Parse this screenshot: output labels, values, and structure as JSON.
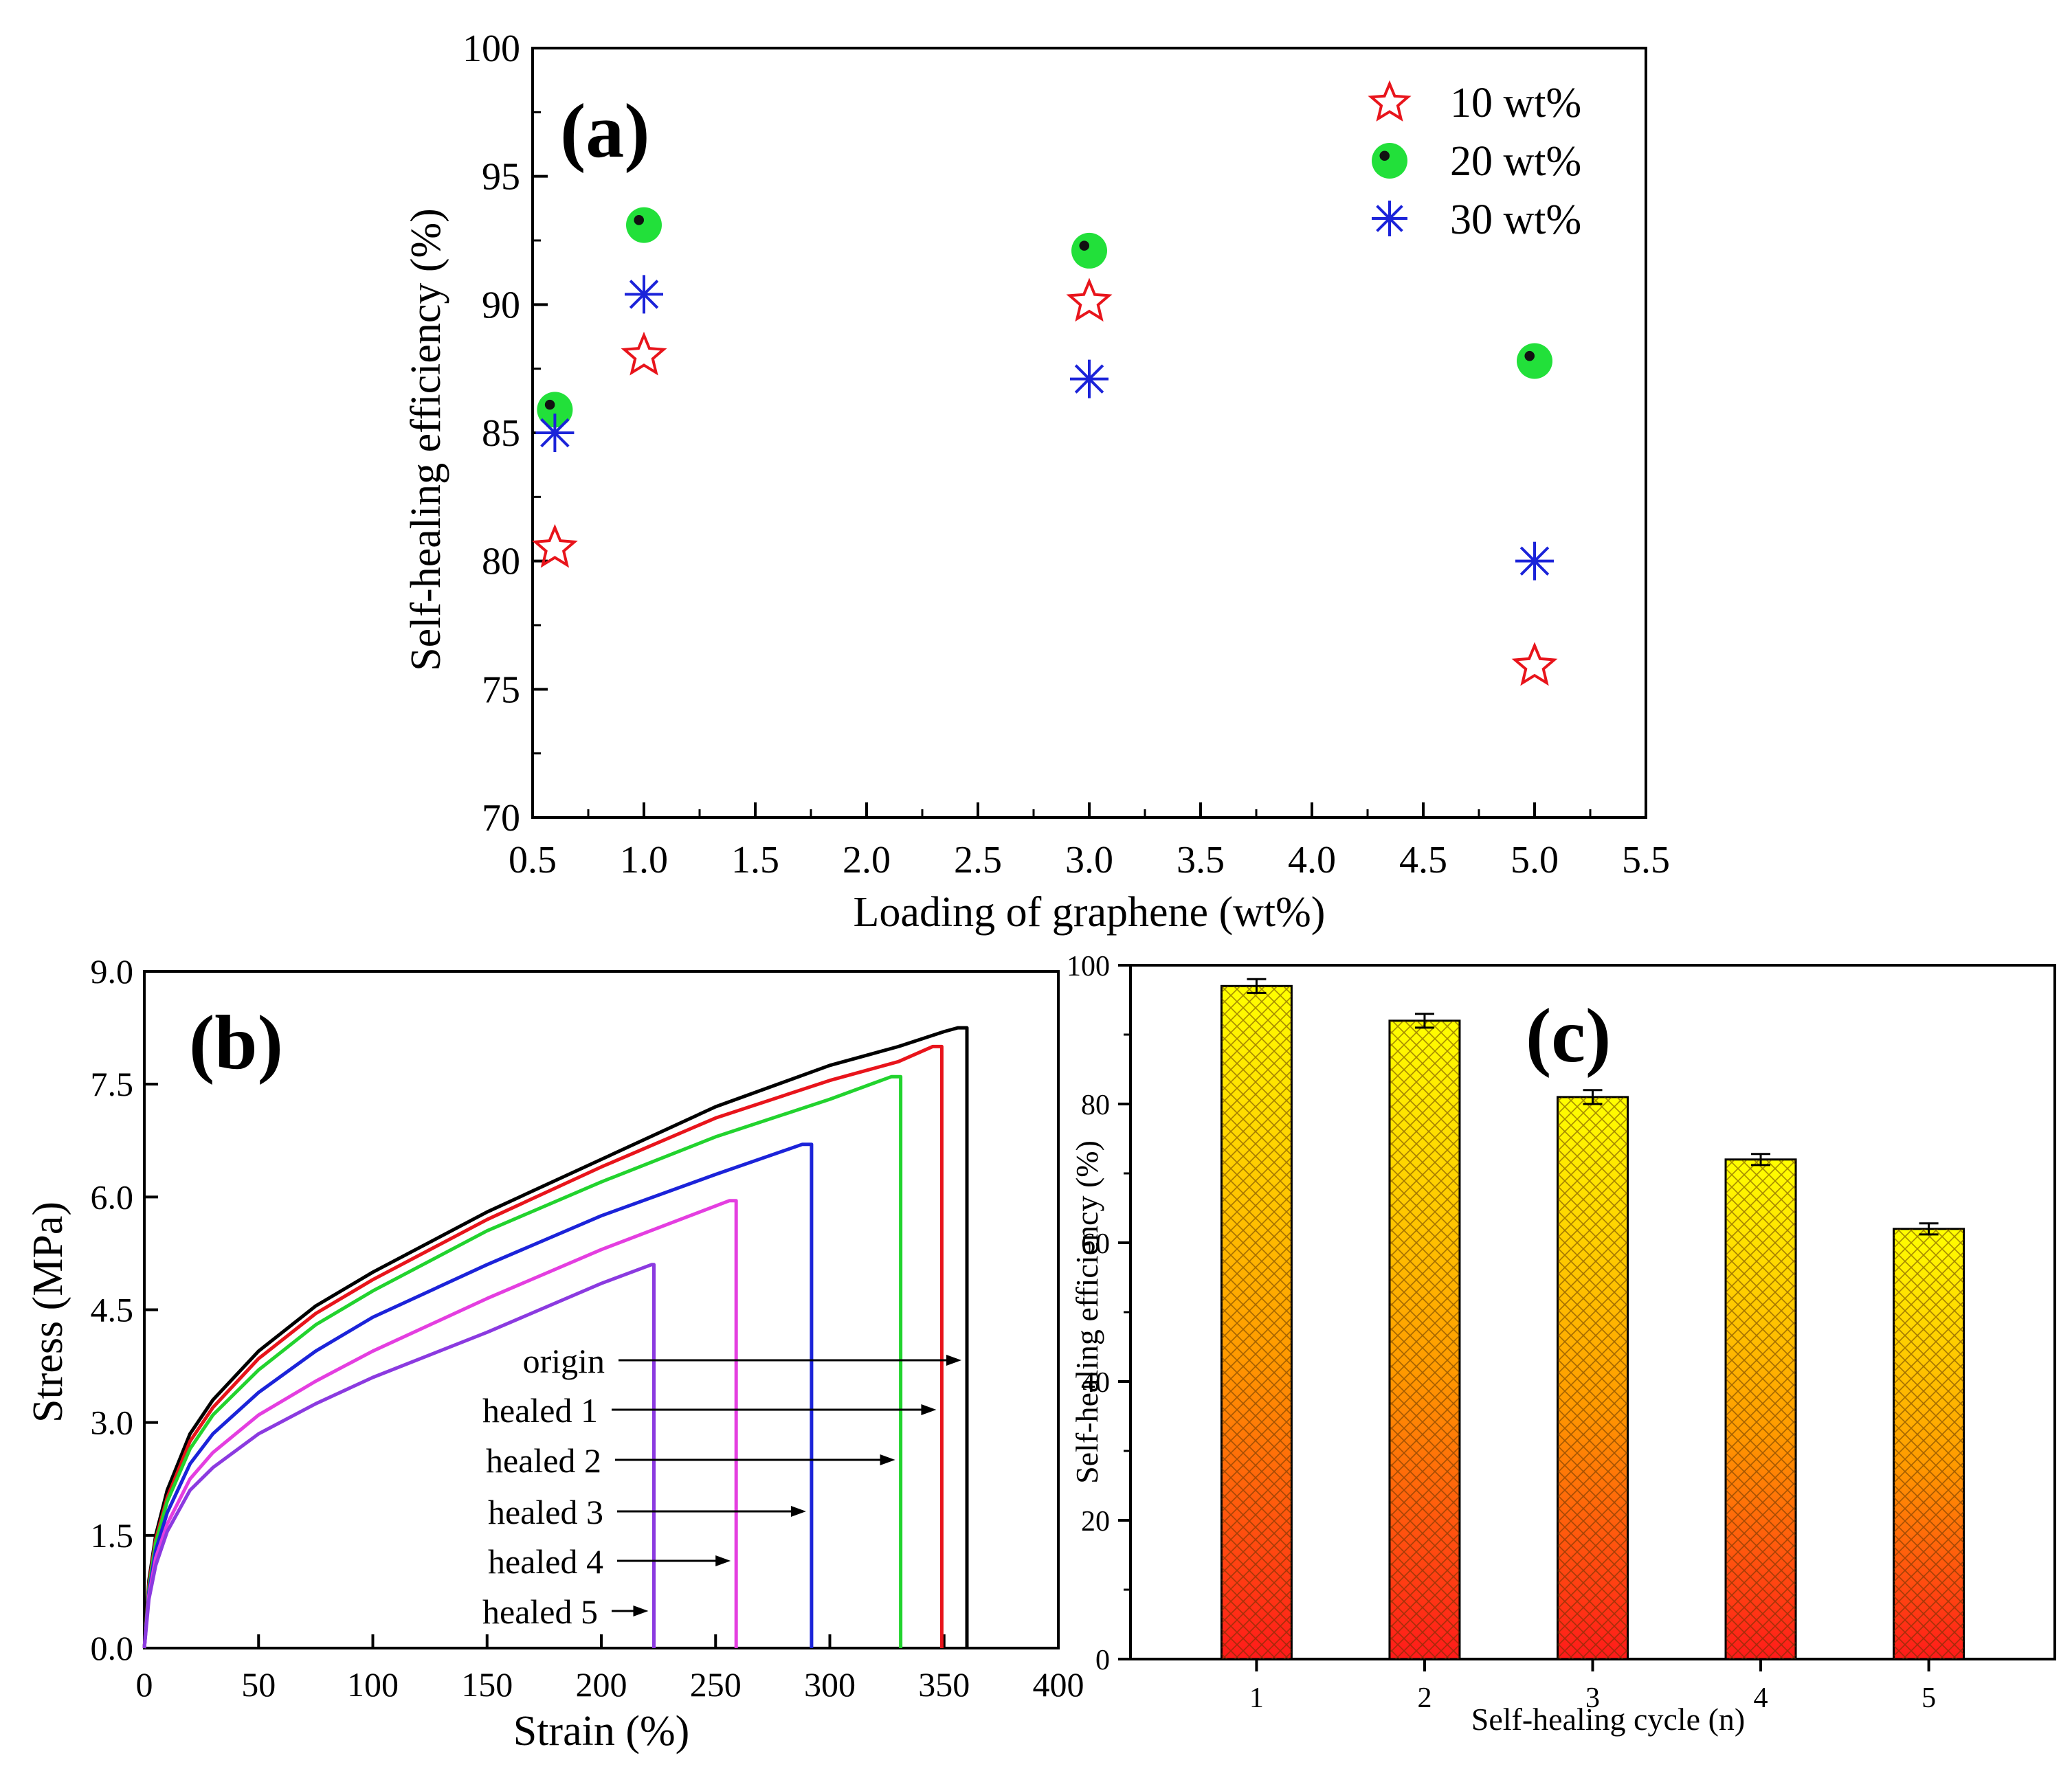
{
  "chart_data": [
    {
      "panel": "(a)",
      "type": "scatter",
      "xlabel": "Loading of graphene (wt%)",
      "ylabel": "Self-healing efficiency (%)",
      "xlim": [
        0.5,
        5.5
      ],
      "ylim": [
        70,
        100
      ],
      "xticks": [
        "0.5",
        "1.0",
        "1.5",
        "2.0",
        "2.5",
        "3.0",
        "3.5",
        "4.0",
        "4.5",
        "5.0",
        "5.5"
      ],
      "yticks": [
        "70",
        "75",
        "80",
        "85",
        "90",
        "95",
        "100"
      ],
      "legend_position": "top-right",
      "grid": false,
      "series": [
        {
          "name": "10 wt%",
          "marker": "star",
          "color": "#e8141b",
          "x": [
            0.6,
            1.0,
            3.0,
            5.0
          ],
          "y": [
            80.5,
            88.0,
            90.1,
            75.9
          ]
        },
        {
          "name": "20 wt%",
          "marker": "filled-circle",
          "color": "#22e03a",
          "x": [
            0.6,
            1.0,
            3.0,
            5.0
          ],
          "y": [
            85.9,
            93.1,
            92.1,
            87.8
          ]
        },
        {
          "name": "30 wt%",
          "marker": "asterisk",
          "color": "#1b23d9",
          "x": [
            0.6,
            1.0,
            3.0,
            5.0
          ],
          "y": [
            85.0,
            90.4,
            87.1,
            80.0
          ]
        }
      ]
    },
    {
      "panel": "(b)",
      "type": "line",
      "xlabel": "Strain (%)",
      "ylabel": "Stress (MPa)",
      "xlim": [
        0,
        400
      ],
      "ylim": [
        0,
        9
      ],
      "xticks": [
        "0",
        "50",
        "100",
        "150",
        "200",
        "250",
        "300",
        "350",
        "400"
      ],
      "yticks": [
        "0.0",
        "1.5",
        "3.0",
        "4.5",
        "6.0",
        "7.5",
        "9.0"
      ],
      "grid": false,
      "series": [
        {
          "name": "origin",
          "color": "#000000",
          "x": [
            0,
            2,
            5,
            10,
            20,
            30,
            50,
            75,
            100,
            150,
            200,
            250,
            300,
            330,
            350,
            356
          ],
          "y": [
            0,
            0.9,
            1.5,
            2.1,
            2.85,
            3.3,
            3.95,
            4.55,
            5.0,
            5.8,
            6.5,
            7.2,
            7.75,
            8.0,
            8.2,
            8.25
          ],
          "break_x": 360
        },
        {
          "name": "healed 1",
          "color": "#e8141b",
          "x": [
            0,
            2,
            5,
            10,
            20,
            30,
            50,
            75,
            100,
            150,
            200,
            250,
            300,
            330,
            345
          ],
          "y": [
            0,
            0.85,
            1.45,
            2.0,
            2.75,
            3.2,
            3.85,
            4.45,
            4.9,
            5.7,
            6.4,
            7.05,
            7.55,
            7.8,
            8.0
          ],
          "break_x": 349
        },
        {
          "name": "healed 2",
          "color": "#22d32e",
          "x": [
            0,
            2,
            5,
            10,
            20,
            30,
            50,
            75,
            100,
            150,
            200,
            250,
            300,
            327
          ],
          "y": [
            0,
            0.8,
            1.4,
            1.95,
            2.65,
            3.1,
            3.7,
            4.3,
            4.75,
            5.55,
            6.2,
            6.8,
            7.3,
            7.6
          ],
          "break_x": 331
        },
        {
          "name": "healed 3",
          "color": "#1b23d9",
          "x": [
            0,
            2,
            5,
            10,
            20,
            30,
            50,
            75,
            100,
            150,
            200,
            250,
            288
          ],
          "y": [
            0,
            0.75,
            1.3,
            1.8,
            2.45,
            2.85,
            3.4,
            3.95,
            4.4,
            5.1,
            5.75,
            6.3,
            6.7
          ],
          "break_x": 292
        },
        {
          "name": "healed 4",
          "color": "#e43ee0",
          "x": [
            0,
            2,
            5,
            10,
            20,
            30,
            50,
            75,
            100,
            150,
            200,
            256
          ],
          "y": [
            0,
            0.7,
            1.2,
            1.65,
            2.25,
            2.6,
            3.1,
            3.55,
            3.95,
            4.65,
            5.3,
            5.95
          ],
          "break_x": 259
        },
        {
          "name": "healed 5",
          "color": "#8b3ae0",
          "x": [
            0,
            2,
            5,
            10,
            20,
            30,
            50,
            75,
            100,
            150,
            200,
            222
          ],
          "y": [
            0,
            0.65,
            1.1,
            1.55,
            2.1,
            2.4,
            2.85,
            3.25,
            3.6,
            4.2,
            4.85,
            5.1
          ],
          "break_x": 223
        }
      ],
      "annotations": [
        "origin",
        "healed 1",
        "healed 2",
        "healed 3",
        "healed 4",
        "healed 5"
      ]
    },
    {
      "panel": "(c)",
      "type": "bar",
      "xlabel": "Self-healing cycle (n)",
      "ylabel": "Self-healing efficiency (%)",
      "ylim": [
        0,
        100
      ],
      "categories": [
        "1",
        "2",
        "3",
        "4",
        "5"
      ],
      "yticks": [
        "0",
        "20",
        "40",
        "60",
        "80",
        "100"
      ],
      "values": [
        97,
        92,
        81,
        72,
        62
      ],
      "errors": [
        1.0,
        1.0,
        1.0,
        0.8,
        0.8
      ],
      "bar_gradient": [
        "#ff1a1a",
        "#ff9900",
        "#ffff00"
      ],
      "grid": false
    }
  ]
}
